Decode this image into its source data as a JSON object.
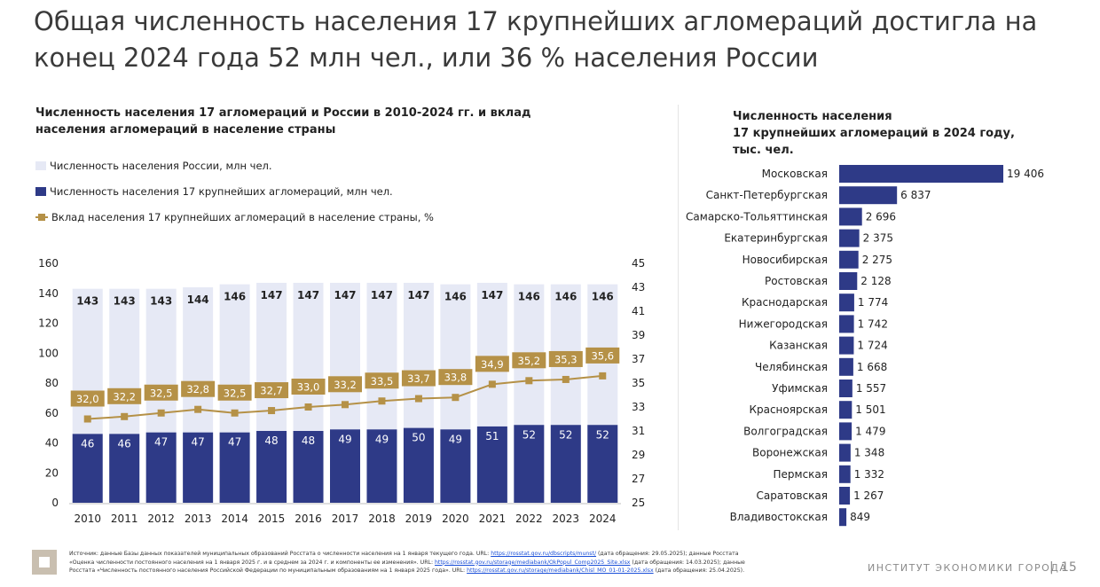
{
  "title": "Общая численность населения 17 крупнейших агломераций достигла на конец 2024 года 52 млн чел., или 36 % населения России",
  "chart_data": [
    {
      "type": "bar",
      "title": "Численность населения 17 агломераций и России в 2010-2024 гг. и вклад населения агломераций в население страны",
      "legend": {
        "russia": "Численность населения России, млн чел.",
        "agglomerations": "Численность населения 17 крупнейших агломераций, млн чел.",
        "share": "Вклад населения 17 крупнейших агломераций в население страны, %"
      },
      "categories": [
        "2010",
        "2011",
        "2012",
        "2013",
        "2014",
        "2015",
        "2016",
        "2017",
        "2018",
        "2019",
        "2020",
        "2021",
        "2022",
        "2023",
        "2024"
      ],
      "series": [
        {
          "name": "Численность населения России, млн чел.",
          "values": [
            143,
            143,
            143,
            144,
            146,
            147,
            147,
            147,
            147,
            147,
            146,
            147,
            146,
            146,
            146
          ]
        },
        {
          "name": "Численность населения 17 крупнейших агломераций, млн чел.",
          "values": [
            46,
            46,
            47,
            47,
            47,
            48,
            48,
            49,
            49,
            50,
            49,
            51,
            52,
            52,
            52
          ]
        },
        {
          "name": "Вклад населения 17 крупнейших агломераций в население страны, %",
          "values": [
            32.0,
            32.2,
            32.5,
            32.8,
            32.5,
            32.7,
            33.0,
            33.2,
            33.5,
            33.7,
            33.8,
            34.9,
            35.2,
            35.3,
            35.6
          ],
          "labels": [
            "32,0",
            "32,2",
            "32,5",
            "32,8",
            "32,5",
            "32,7",
            "33,0",
            "33,2",
            "33,5",
            "33,7",
            "33,8",
            "34,9",
            "35,2",
            "35,3",
            "35,6"
          ]
        }
      ],
      "ylim": [
        0,
        160
      ],
      "yticks": [
        "0",
        "20",
        "40",
        "60",
        "80",
        "100",
        "120",
        "140",
        "160"
      ],
      "y2lim": [
        25,
        45
      ],
      "y2ticks": [
        "25",
        "27",
        "29",
        "31",
        "33",
        "35",
        "37",
        "39",
        "41",
        "43",
        "45"
      ],
      "colors": {
        "russia": "#e6e9f5",
        "agglomerations": "#2e3a87",
        "share": "#b59147"
      }
    },
    {
      "type": "bar",
      "orientation": "horizontal",
      "title": "Численность населения 17 крупнейших агломераций в 2024 году, тыс. чел.",
      "title_lines": [
        "Численность населения",
        "17 крупнейших агломераций в 2024 году,",
        "тыс. чел."
      ],
      "categories": [
        "Московская",
        "Санкт-Петербургская",
        "Самарско-Тольяттинская",
        "Екатеринбургская",
        "Новосибирская",
        "Ростовская",
        "Краснодарская",
        "Нижегородская",
        "Казанская",
        "Челябинская",
        "Уфимская",
        "Красноярская",
        "Волгоградская",
        "Воронежская",
        "Пермская",
        "Саратовская",
        "Владивостокская"
      ],
      "values": [
        19406,
        6837,
        2696,
        2375,
        2275,
        2128,
        1774,
        1742,
        1724,
        1668,
        1557,
        1501,
        1479,
        1348,
        1332,
        1267,
        849
      ],
      "labels": [
        "19 406",
        "6 837",
        "2 696",
        "2 375",
        "2 275",
        "2 128",
        "1 774",
        "1 742",
        "1 724",
        "1 668",
        "1 557",
        "1 501",
        "1 479",
        "1 348",
        "1 332",
        "1 267",
        "849"
      ],
      "colors": {
        "bar": "#2e3a87"
      }
    }
  ],
  "footer": {
    "line1_pre": "Источник: данные Базы данных показателей муниципальных образований Росстата о численности населения на 1 января текущего года. URL: ",
    "line1_link": "https://rosstat.gov.ru/dbscripts/munst/",
    "line1_post": " (дата обращения: 29.05.2025); данные Росстата",
    "line2_pre": "«Оценка численности постоянного населения на 1 января 2025 г. и в среднем за 2024 г. и компоненты ее изменения». URL: ",
    "line2_link": "https://rosstat.gov.ru/storage/mediabank/OkPopul_Comp2025_Site.xlsx",
    "line2_post": " (дата обращения: 14.03.2025); данные",
    "line3_pre": "Росстата «Численность постоянного населения Российской Федерации по муниципальным образованиям на 1 января 2025 года». URL: ",
    "line3_link": "https://rosstat.gov.ru/storage/mediabank/Chisl_MO_01-01-2025.xlsx",
    "line3_post": " (дата обращения: 25.04.2025)."
  },
  "brand": "ИНСТИТУТ ЭКОНОМИКИ ГОРОДА",
  "separator": "|",
  "page_number": "15"
}
